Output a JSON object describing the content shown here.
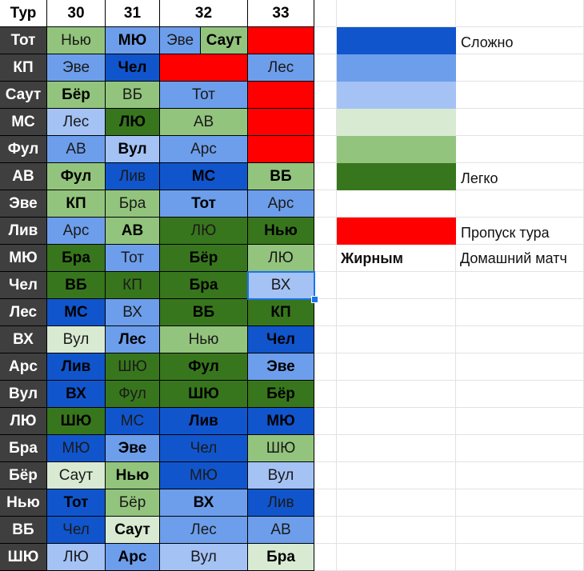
{
  "colors": {
    "c1": "#1155cc",
    "c2": "#6d9eeb",
    "c3": "#a4c2f4",
    "g1": "#d9ead3",
    "g2": "#93c47d",
    "g3": "#38761d",
    "red": "#ff0000",
    "team_bg": "#3f3f3f"
  },
  "header": {
    "corner": "Тур",
    "rounds": [
      "30",
      "31",
      "32",
      "33"
    ]
  },
  "rows": [
    {
      "team": "Тот",
      "cells": [
        {
          "text": "Нью",
          "bold": false,
          "color": "g2"
        },
        {
          "text": "МЮ",
          "bold": true,
          "color": "c2"
        },
        {
          "split": [
            {
              "text": "Эве",
              "bold": false,
              "color": "c2"
            },
            {
              "text": "Саут",
              "bold": true,
              "color": "g2"
            }
          ]
        },
        {
          "text": "",
          "bold": false,
          "color": "red"
        }
      ]
    },
    {
      "team": "КП",
      "cells": [
        {
          "text": "Эве",
          "bold": false,
          "color": "c2"
        },
        {
          "text": "Чел",
          "bold": true,
          "color": "c1"
        },
        {
          "text": "",
          "bold": false,
          "color": "red"
        },
        {
          "text": "Лес",
          "bold": false,
          "color": "c2"
        }
      ]
    },
    {
      "team": "Саут",
      "cells": [
        {
          "text": "Бёр",
          "bold": true,
          "color": "g2"
        },
        {
          "text": "ВБ",
          "bold": false,
          "color": "g2"
        },
        {
          "text": "Тот",
          "bold": false,
          "color": "c2"
        },
        {
          "text": "",
          "bold": false,
          "color": "red"
        }
      ]
    },
    {
      "team": "МС",
      "cells": [
        {
          "text": "Лес",
          "bold": false,
          "color": "c3"
        },
        {
          "text": "ЛЮ",
          "bold": true,
          "color": "g3"
        },
        {
          "text": "АВ",
          "bold": false,
          "color": "g2"
        },
        {
          "text": "",
          "bold": false,
          "color": "red"
        }
      ]
    },
    {
      "team": "Фул",
      "cells": [
        {
          "text": "АВ",
          "bold": false,
          "color": "c2"
        },
        {
          "text": "Вул",
          "bold": true,
          "color": "c3"
        },
        {
          "text": "Арс",
          "bold": false,
          "color": "c2"
        },
        {
          "text": "",
          "bold": false,
          "color": "red"
        }
      ]
    },
    {
      "team": "АВ",
      "cells": [
        {
          "text": "Фул",
          "bold": true,
          "color": "g2"
        },
        {
          "text": "Лив",
          "bold": false,
          "color": "c1"
        },
        {
          "text": "МС",
          "bold": true,
          "color": "c1"
        },
        {
          "text": "ВБ",
          "bold": true,
          "color": "g2"
        }
      ]
    },
    {
      "team": "Эве",
      "cells": [
        {
          "text": "КП",
          "bold": true,
          "color": "g2"
        },
        {
          "text": "Бра",
          "bold": false,
          "color": "g2"
        },
        {
          "text": "Тот",
          "bold": true,
          "color": "c2"
        },
        {
          "text": "Арс",
          "bold": false,
          "color": "c2"
        }
      ]
    },
    {
      "team": "Лив",
      "cells": [
        {
          "text": "Арс",
          "bold": false,
          "color": "c2"
        },
        {
          "text": "АВ",
          "bold": true,
          "color": "g2"
        },
        {
          "text": "ЛЮ",
          "bold": false,
          "color": "g3"
        },
        {
          "text": "Нью",
          "bold": true,
          "color": "g3"
        }
      ]
    },
    {
      "team": "МЮ",
      "cells": [
        {
          "text": "Бра",
          "bold": true,
          "color": "g3"
        },
        {
          "text": "Тот",
          "bold": false,
          "color": "c2"
        },
        {
          "text": "Бёр",
          "bold": true,
          "color": "g3"
        },
        {
          "text": "ЛЮ",
          "bold": false,
          "color": "g2"
        }
      ]
    },
    {
      "team": "Чел",
      "cells": [
        {
          "text": "ВБ",
          "bold": true,
          "color": "g3"
        },
        {
          "text": "КП",
          "bold": false,
          "color": "g3"
        },
        {
          "text": "Бра",
          "bold": true,
          "color": "g3"
        },
        {
          "text": "ВХ",
          "bold": false,
          "color": "c3"
        }
      ]
    },
    {
      "team": "Лес",
      "cells": [
        {
          "text": "МС",
          "bold": true,
          "color": "c1"
        },
        {
          "text": "ВХ",
          "bold": false,
          "color": "c2"
        },
        {
          "text": "ВБ",
          "bold": true,
          "color": "g3"
        },
        {
          "text": "КП",
          "bold": true,
          "color": "g3"
        }
      ]
    },
    {
      "team": "ВХ",
      "cells": [
        {
          "text": "Вул",
          "bold": false,
          "color": "g1"
        },
        {
          "text": "Лес",
          "bold": true,
          "color": "c2"
        },
        {
          "text": "Нью",
          "bold": false,
          "color": "g2"
        },
        {
          "text": "Чел",
          "bold": true,
          "color": "c1"
        }
      ]
    },
    {
      "team": "Арс",
      "cells": [
        {
          "text": "Лив",
          "bold": true,
          "color": "c1"
        },
        {
          "text": "ШЮ",
          "bold": false,
          "color": "g3"
        },
        {
          "text": "Фул",
          "bold": true,
          "color": "g3"
        },
        {
          "text": "Эве",
          "bold": true,
          "color": "c2"
        }
      ]
    },
    {
      "team": "Вул",
      "cells": [
        {
          "text": "ВХ",
          "bold": true,
          "color": "c1"
        },
        {
          "text": "Фул",
          "bold": false,
          "color": "g3"
        },
        {
          "text": "ШЮ",
          "bold": true,
          "color": "g3"
        },
        {
          "text": "Бёр",
          "bold": true,
          "color": "g3"
        }
      ]
    },
    {
      "team": "ЛЮ",
      "cells": [
        {
          "text": "ШЮ",
          "bold": true,
          "color": "g3"
        },
        {
          "text": "МС",
          "bold": false,
          "color": "c1"
        },
        {
          "text": "Лив",
          "bold": true,
          "color": "c1"
        },
        {
          "text": "МЮ",
          "bold": true,
          "color": "c1"
        }
      ]
    },
    {
      "team": "Бра",
      "cells": [
        {
          "text": "МЮ",
          "bold": false,
          "color": "c1"
        },
        {
          "text": "Эве",
          "bold": true,
          "color": "c2"
        },
        {
          "text": "Чел",
          "bold": false,
          "color": "c1"
        },
        {
          "text": "ШЮ",
          "bold": false,
          "color": "g2"
        }
      ]
    },
    {
      "team": "Бёр",
      "cells": [
        {
          "text": "Саут",
          "bold": false,
          "color": "g1"
        },
        {
          "text": "Нью",
          "bold": true,
          "color": "g2"
        },
        {
          "text": "МЮ",
          "bold": false,
          "color": "c1"
        },
        {
          "text": "Вул",
          "bold": false,
          "color": "c3"
        }
      ]
    },
    {
      "team": "Нью",
      "cells": [
        {
          "text": "Тот",
          "bold": true,
          "color": "c1"
        },
        {
          "text": "Бёр",
          "bold": false,
          "color": "g2"
        },
        {
          "text": "ВХ",
          "bold": true,
          "color": "c2"
        },
        {
          "text": "Лив",
          "bold": false,
          "color": "c1"
        }
      ]
    },
    {
      "team": "ВБ",
      "cells": [
        {
          "text": "Чел",
          "bold": false,
          "color": "c1"
        },
        {
          "text": "Саут",
          "bold": true,
          "color": "g1"
        },
        {
          "text": "Лес",
          "bold": false,
          "color": "c2"
        },
        {
          "text": "АВ",
          "bold": false,
          "color": "c2"
        }
      ]
    },
    {
      "team": "ШЮ",
      "cells": [
        {
          "text": "ЛЮ",
          "bold": false,
          "color": "c3"
        },
        {
          "text": "Арс",
          "bold": true,
          "color": "c2"
        },
        {
          "text": "Вул",
          "bold": false,
          "color": "c3"
        },
        {
          "text": "Бра",
          "bold": true,
          "color": "g1"
        }
      ]
    }
  ],
  "legend": {
    "items": [
      {
        "color": "c1",
        "label": "Сложно"
      },
      {
        "color": "c2",
        "label": ""
      },
      {
        "color": "c3",
        "label": ""
      },
      {
        "color": "g1",
        "label": ""
      },
      {
        "color": "g2",
        "label": ""
      },
      {
        "color": "g3",
        "label": "Легко"
      },
      {
        "color": "none",
        "label": ""
      },
      {
        "color": "red",
        "label": "Пропуск тура"
      }
    ],
    "bold_label": "Жирным",
    "bold_meaning": "Домашний матч"
  }
}
